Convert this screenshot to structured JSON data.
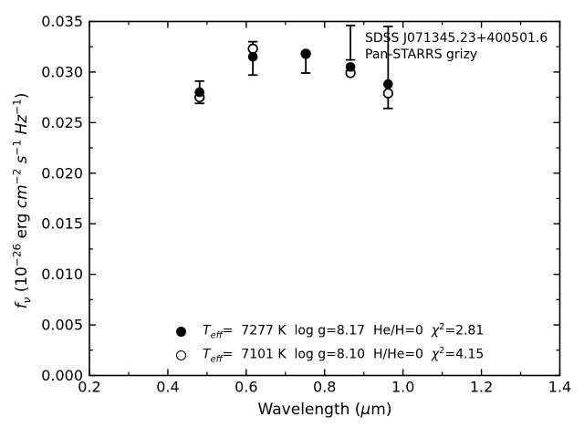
{
  "figure": {
    "background_color": "#ffffff",
    "foreground_color": "#000000"
  },
  "annotation": {
    "line1": "SDSS J071345.23+400501.6",
    "line2": "Pan-STARRS grizy"
  },
  "axis_labels": {
    "x_parts": [
      {
        "t": "Wavelength ("
      },
      {
        "t": "μ",
        "i": true
      },
      {
        "t": "m)"
      }
    ],
    "y_parts": [
      {
        "t": "f",
        "i": true
      },
      {
        "t": "ν",
        "s": "sub",
        "i": true
      },
      {
        "t": " (10"
      },
      {
        "t": "−26",
        "s": "sup"
      },
      {
        "t": " erg "
      },
      {
        "t": "cm",
        "i": true
      },
      {
        "t": "−2",
        "s": "sup"
      },
      {
        "t": " "
      },
      {
        "t": "s",
        "i": true
      },
      {
        "t": "−1",
        "s": "sup"
      },
      {
        "t": " "
      },
      {
        "t": "Hz",
        "i": true
      },
      {
        "t": "−1",
        "s": "sup"
      },
      {
        "t": ")"
      }
    ]
  },
  "legend": {
    "entries": [
      {
        "marker": "filled-circle",
        "label": "Teff= 7277 K  log g=8.17  He/H=0  chi2=2.81",
        "parts": [
          {
            "t": "T",
            "i": true
          },
          {
            "t": "eff",
            "s": "sub",
            "i": true
          },
          {
            "t": "=  7277 K  log g=8.17  He/H=0  "
          },
          {
            "t": "χ",
            "i": true
          },
          {
            "t": "2",
            "s": "sup"
          },
          {
            "t": "=2.81"
          }
        ]
      },
      {
        "marker": "open-circle",
        "label": "Teff= 7101 K  log g=8.10  H/He=0  chi2=4.15",
        "parts": [
          {
            "t": "T",
            "i": true
          },
          {
            "t": "eff",
            "s": "sub",
            "i": true
          },
          {
            "t": "=  7101 K  log g=8.10  H/He=0  "
          },
          {
            "t": "χ",
            "i": true
          },
          {
            "t": "2",
            "s": "sup"
          },
          {
            "t": "=4.15"
          }
        ]
      }
    ]
  },
  "chart_data": {
    "type": "scatter",
    "title": "",
    "xlabel": "Wavelength (μm)",
    "ylabel": "f_ν (10⁻²⁶ erg cm⁻² s⁻¹ Hz⁻¹)",
    "xlim": [
      0.2,
      1.4
    ],
    "ylim": [
      0.0,
      0.035
    ],
    "grid": false,
    "legend_position": "lower-left-inside",
    "annotation_lines": [
      "SDSS J071345.23+400501.6",
      "Pan-STARRS grizy"
    ],
    "x_major_ticks": [
      0.2,
      0.4,
      0.6,
      0.8,
      1.0,
      1.2,
      1.4
    ],
    "x_tick_labels": [
      "0.2",
      "0.4",
      "0.6",
      "0.8",
      "1.0",
      "1.2",
      "1.4"
    ],
    "x_minor_ticks": [
      0.3,
      0.5,
      0.7,
      0.9,
      1.1,
      1.3
    ],
    "y_major_ticks": [
      0.0,
      0.005,
      0.01,
      0.015,
      0.02,
      0.025,
      0.03,
      0.035
    ],
    "y_tick_labels": [
      "0.000",
      "0.005",
      "0.010",
      "0.015",
      "0.020",
      "0.025",
      "0.030",
      "0.035"
    ],
    "y_minor_ticks": [
      0.0025,
      0.0075,
      0.0125,
      0.0175,
      0.0225,
      0.0275,
      0.0325
    ],
    "bands": [
      "g",
      "r",
      "i",
      "z",
      "y"
    ],
    "x": [
      0.481,
      0.617,
      0.752,
      0.866,
      0.962
    ],
    "series": [
      {
        "name": "Model Teff=7277 K log g=8.17 He/H=0 (chi2=2.81)",
        "marker": "filled-circle",
        "values": [
          0.028,
          0.0315,
          0.0318,
          0.0305,
          0.0288
        ]
      },
      {
        "name": "Model Teff=7101 K log g=8.10 H/He=0 (chi2=4.15)",
        "marker": "open-circle",
        "values": [
          0.0275,
          0.0323,
          0.0318,
          0.0299,
          0.0279
        ]
      }
    ],
    "error_bars": [
      {
        "band": "g",
        "x": 0.481,
        "top": 0.0291,
        "bottom": 0.0269
      },
      {
        "band": "r",
        "x": 0.617,
        "top": 0.033,
        "bottom": 0.0297
      },
      {
        "band": "i",
        "x": 0.752,
        "top": 0.032,
        "bottom": 0.0299
      },
      {
        "band": "z",
        "x": 0.866,
        "top": 0.0346,
        "bottom": 0.0312
      },
      {
        "band": "y",
        "x": 0.962,
        "top": 0.0345,
        "bottom": 0.0264
      }
    ]
  }
}
